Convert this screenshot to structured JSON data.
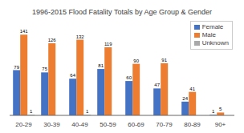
{
  "chart_data": {
    "type": "bar",
    "title": "1996-2015 Flood Fatality Totals by Age Group & Gender",
    "categories": [
      "20-29",
      "30-39",
      "40-49",
      "50-59",
      "60-69",
      "70-79",
      "80-89",
      "90+"
    ],
    "series": [
      {
        "name": "Female",
        "color": "#4472C4",
        "values": [
          79,
          75,
          64,
          81,
          60,
          47,
          24,
          1
        ]
      },
      {
        "name": "Male",
        "color": "#ED7D31",
        "values": [
          141,
          126,
          132,
          119,
          90,
          91,
          41,
          5
        ]
      },
      {
        "name": "Unknown",
        "color": "#A9A9A9",
        "values": [
          1,
          0,
          1,
          0,
          0,
          0,
          0,
          0
        ]
      }
    ],
    "ylim": [
      0,
      165
    ],
    "grid": false,
    "legend": "upper right",
    "data_labels": true,
    "tick_labels": "x"
  }
}
